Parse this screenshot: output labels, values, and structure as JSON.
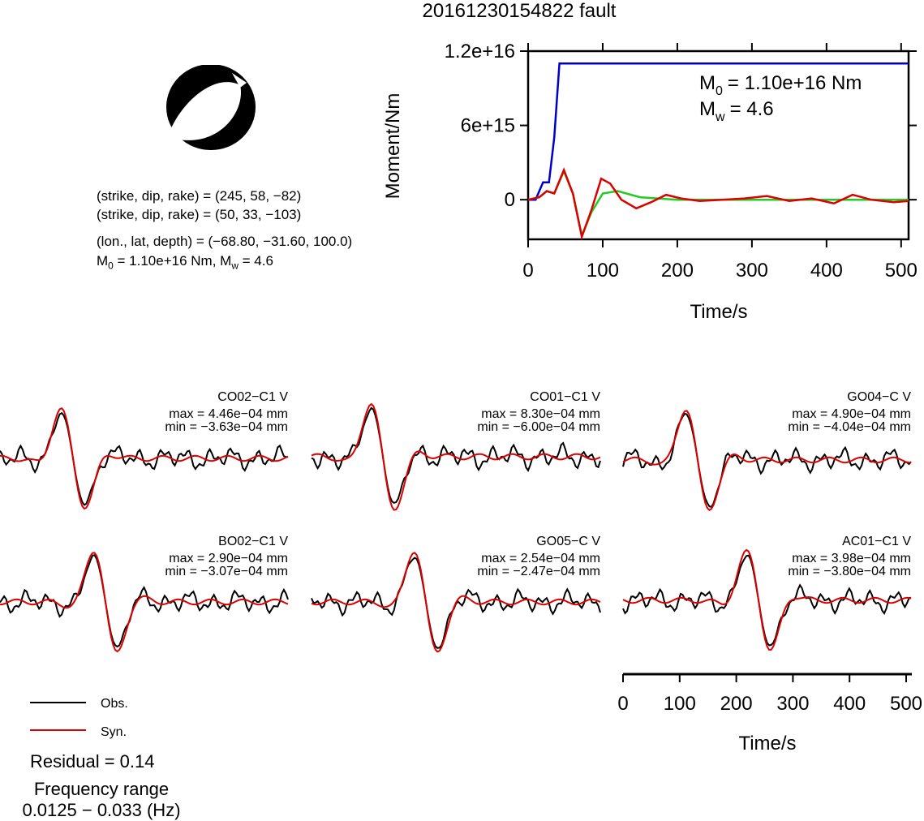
{
  "title": "20161230154822 fault",
  "mechanism": {
    "line1": "(strike, dip, rake) = (245, 58, −82)",
    "line2": "(strike, dip, rake) = (50, 33, −103)",
    "line3": "(lon., lat, depth) = (−68.80, −31.60, 100.0)",
    "line4_m0": "M",
    "line4_sub0": "0",
    "line4_rest": " = 1.10e+16 Nm, M",
    "line4_subw": "w",
    "line4_end": " = 4.6"
  },
  "moment_plot": {
    "ylabel": "Moment/Nm",
    "xlabel": "Time/s",
    "yticks": [
      "0",
      "6e+15",
      "1.2e+16"
    ],
    "xticks": [
      "0",
      "100",
      "200",
      "300",
      "400",
      "500"
    ],
    "m0_text": "= 1.10e+16 Nm",
    "mw_text": "= 4.6",
    "m0_sym": "M",
    "m0_sub": "0",
    "mw_sym": "M",
    "mw_sub": "w",
    "colors": {
      "cumulative": "#0000cc",
      "rate_green": "#22cc22",
      "rate_red": "#dd0000"
    }
  },
  "waveforms": {
    "stations": [
      {
        "name": "CO02−C1 V",
        "max": "max = 4.46e−04 mm",
        "min": "min = −3.63e−04 mm"
      },
      {
        "name": "CO01−C1 V",
        "max": "max = 8.30e−04 mm",
        "min": "min = −6.00e−04 mm"
      },
      {
        "name": "GO04−C V",
        "max": "max = 4.90e−04 mm",
        "min": "min = −4.04e−04 mm"
      },
      {
        "name": "BO02−C1 V",
        "max": "max = 2.90e−04 mm",
        "min": "min = −3.07e−04 mm"
      },
      {
        "name": "GO05−C V",
        "max": "max = 2.54e−04 mm",
        "min": "min = −2.47e−04 mm"
      },
      {
        "name": "AC01−C1 V",
        "max": "max = 3.98e−04 mm",
        "min": "min = −3.80e−04 mm"
      }
    ],
    "xlabel": "Time/s",
    "xticks": [
      "0",
      "100",
      "200",
      "300",
      "400",
      "500"
    ],
    "colors": {
      "obs": "#000000",
      "syn": "#dd0000"
    }
  },
  "legend": {
    "obs": "Obs.",
    "syn": "Syn."
  },
  "residual": "Residual = 0.14",
  "freq_label": "Frequency range",
  "freq_value": "0.0125 − 0.033 (Hz)",
  "chart_data": [
    {
      "type": "line",
      "title": "",
      "xlabel": "Time/s",
      "ylabel": "Moment/Nm",
      "xlim": [
        0,
        510
      ],
      "ylim": [
        -3200000000000000.0,
        1.2e+16
      ],
      "series": [
        {
          "name": "",
          "x": [
            0,
            10,
            20,
            28,
            35,
            42,
            510
          ],
          "values": [
            0,
            0,
            1400000000000000.0,
            1400000000000000.0,
            5000000000000000.0,
            1.1e+16,
            1.1e+16
          ]
        },
        {
          "name": "",
          "x": [
            0,
            15,
            25,
            35,
            48,
            60,
            72,
            85,
            100,
            120,
            150,
            200,
            300,
            510
          ],
          "values": [
            0,
            200000000000000.0,
            700000000000000.0,
            500000000000000.0,
            2300000000000000.0,
            500000000000000.0,
            -2900000000000000.0,
            -1000000000000000.0,
            500000000000000.0,
            700000000000000.0,
            200000000000000.0,
            0,
            0,
            0
          ]
        },
        {
          "name": "",
          "x": [
            0,
            15,
            25,
            35,
            48,
            60,
            72,
            85,
            98,
            110,
            125,
            145,
            165,
            185,
            205,
            230,
            260,
            290,
            320,
            350,
            380,
            410,
            435,
            460,
            490,
            510
          ],
          "values": [
            0,
            200000000000000.0,
            700000000000000.0,
            500000000000000.0,
            2400000000000000.0,
            500000000000000.0,
            -3000000000000000.0,
            -800000000000000.0,
            1700000000000000.0,
            1300000000000000.0,
            0,
            -700000000000000.0,
            -200000000000000.0,
            400000000000000.0,
            100000000000000.0,
            -100000000000000.0,
            0,
            100000000000000.0,
            300000000000000.0,
            -100000000000000.0,
            100000000000000.0,
            -300000000000000.0,
            400000000000000.0,
            0,
            -200000000000000.0,
            -100000000000000.0
          ]
        }
      ]
    }
  ]
}
